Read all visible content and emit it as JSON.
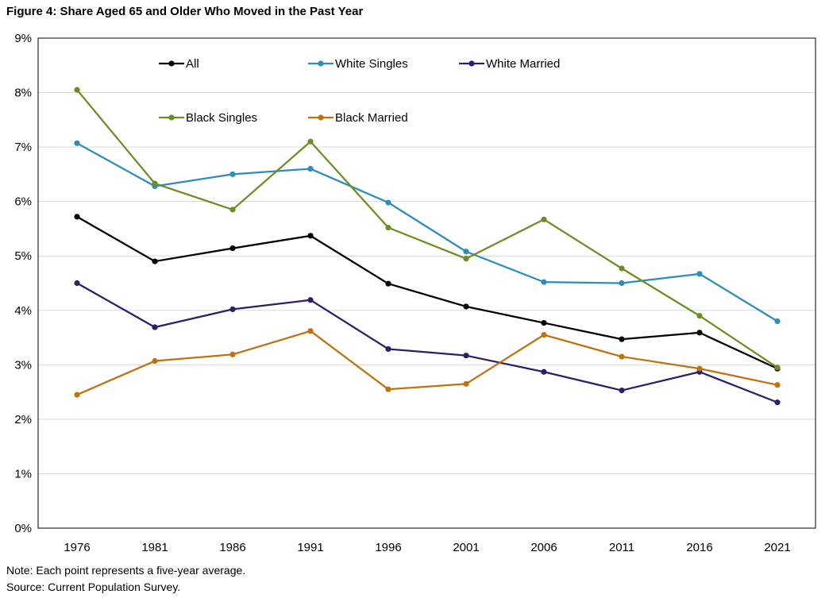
{
  "figure": {
    "title": "Figure 4: Share Aged 65 and Older Who Moved in the Past Year",
    "note": "Note: Each point represents a five-year average.",
    "source": "Source: Current Population Survey."
  },
  "chart_data": {
    "type": "line",
    "title": "Figure 4: Share Aged 65 and Older Who Moved in the Past Year",
    "xlabel": "",
    "ylabel": "",
    "ylim": [
      0,
      9
    ],
    "y_ticks": [
      "0%",
      "1%",
      "2%",
      "3%",
      "4%",
      "5%",
      "6%",
      "7%",
      "8%",
      "9%"
    ],
    "grid": true,
    "legend_position": "top-left (inside plot)",
    "categories": [
      "1976",
      "1981",
      "1986",
      "1991",
      "1996",
      "2001",
      "2006",
      "2011",
      "2016",
      "2021"
    ],
    "series": [
      {
        "name": "All",
        "color": "#000000",
        "values": [
          5.72,
          4.9,
          5.14,
          5.37,
          4.49,
          4.07,
          3.77,
          3.47,
          3.59,
          2.93
        ]
      },
      {
        "name": "White Singles",
        "color": "#2b8cbe",
        "values": [
          7.07,
          6.28,
          6.5,
          6.6,
          5.98,
          5.08,
          4.52,
          4.5,
          4.67,
          3.8
        ]
      },
      {
        "name": "White Married",
        "color": "#2c1e6b",
        "values": [
          4.5,
          3.69,
          4.02,
          4.19,
          3.29,
          3.17,
          2.87,
          2.53,
          2.87,
          2.31
        ]
      },
      {
        "name": "Black Singles",
        "color": "#6b8e23",
        "values": [
          8.05,
          6.33,
          5.85,
          7.1,
          5.52,
          4.95,
          5.67,
          4.77,
          3.9,
          2.95
        ]
      },
      {
        "name": "Black Married",
        "color": "#c0720e",
        "values": [
          2.45,
          3.07,
          3.19,
          3.62,
          2.55,
          2.65,
          3.55,
          3.15,
          2.93,
          2.63
        ]
      }
    ]
  }
}
